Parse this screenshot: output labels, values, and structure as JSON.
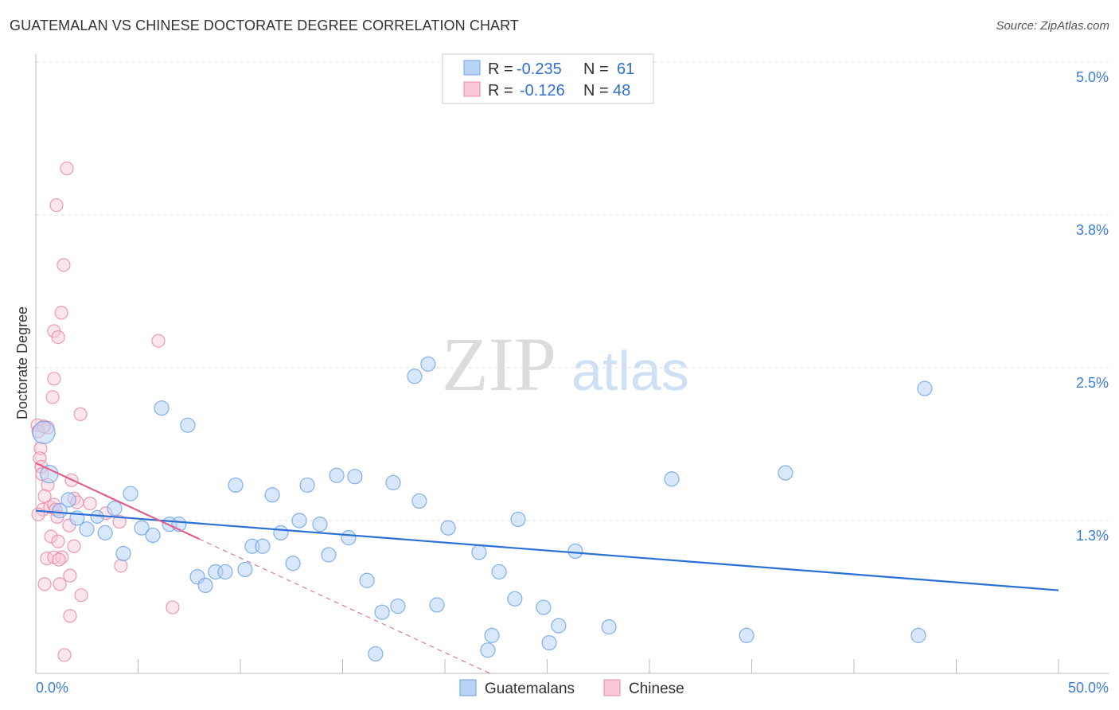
{
  "title": "GUATEMALAN VS CHINESE DOCTORATE DEGREE CORRELATION CHART",
  "source": "Source: ZipAtlas.com",
  "watermark": "ZIPatlas",
  "chart_data": {
    "type": "scatter",
    "title": "GUATEMALAN VS CHINESE DOCTORATE DEGREE CORRELATION CHART",
    "xlabel": "",
    "ylabel": "Doctorate Degree",
    "xlim": [
      0,
      50
    ],
    "ylim": [
      0,
      5.0
    ],
    "x_tick_labels": [
      "0.0%",
      "50.0%"
    ],
    "y_ticks": [
      1.25,
      2.5,
      3.75,
      5.0
    ],
    "y_tick_labels": [
      "1.3%",
      "2.5%",
      "3.8%",
      "5.0%"
    ],
    "grid": true,
    "legend_placement": "top-center",
    "legend": [
      {
        "name": "Guatemalans",
        "r_label": "R =",
        "r": "-0.235",
        "n_label": "N =",
        "n": "61",
        "color": "#6fa3e8",
        "fill": "#b9d3f5"
      },
      {
        "name": "Chinese",
        "r_label": "R =",
        "r": "-0.126",
        "n_label": "N =",
        "n": "48",
        "color": "#e889a6",
        "fill": "#f8c8d6"
      }
    ],
    "series": [
      {
        "name": "Guatemalans",
        "color": "#6fa3e8",
        "trend": {
          "x": [
            0,
            50
          ],
          "y": [
            1.33,
            0.68
          ],
          "color": "#2a6fd6"
        },
        "points": [
          [
            0.39,
            1.97,
            14
          ],
          [
            0.66,
            1.63,
            11
          ],
          [
            1.6,
            1.42,
            9
          ],
          [
            1.17,
            1.33,
            9
          ],
          [
            2.02,
            1.27,
            9
          ],
          [
            2.49,
            1.18,
            9
          ],
          [
            3.0,
            1.28,
            8
          ],
          [
            3.39,
            1.15,
            9
          ],
          [
            3.85,
            1.35,
            9
          ],
          [
            4.28,
            0.98,
            9
          ],
          [
            4.63,
            1.47,
            9
          ],
          [
            5.18,
            1.19,
            9
          ],
          [
            5.72,
            1.13,
            9
          ],
          [
            6.15,
            2.17,
            9
          ],
          [
            6.54,
            1.22,
            9
          ],
          [
            7.0,
            1.22,
            9
          ],
          [
            7.43,
            2.03,
            9
          ],
          [
            7.9,
            0.79,
            9
          ],
          [
            8.29,
            0.72,
            9
          ],
          [
            8.79,
            0.83,
            9
          ],
          [
            9.26,
            0.83,
            9
          ],
          [
            9.77,
            1.54,
            9
          ],
          [
            10.23,
            0.85,
            9
          ],
          [
            10.58,
            1.04,
            9
          ],
          [
            11.09,
            1.04,
            9
          ],
          [
            11.56,
            1.46,
            9
          ],
          [
            11.98,
            1.15,
            9
          ],
          [
            12.57,
            0.9,
            9
          ],
          [
            12.88,
            1.25,
            9
          ],
          [
            13.27,
            1.54,
            9
          ],
          [
            13.89,
            1.22,
            9
          ],
          [
            14.32,
            0.97,
            9
          ],
          [
            14.71,
            1.62,
            9
          ],
          [
            15.29,
            1.11,
            9
          ],
          [
            15.6,
            1.61,
            9
          ],
          [
            16.19,
            0.76,
            9
          ],
          [
            16.61,
            0.16,
            9
          ],
          [
            16.93,
            0.5,
            9
          ],
          [
            17.47,
            1.56,
            9
          ],
          [
            17.7,
            0.55,
            9
          ],
          [
            18.52,
            2.43,
            9
          ],
          [
            18.75,
            1.41,
            9
          ],
          [
            19.18,
            2.53,
            9
          ],
          [
            19.61,
            0.56,
            9
          ],
          [
            20.16,
            1.19,
            9
          ],
          [
            21.67,
            0.99,
            9
          ],
          [
            22.1,
            0.19,
            9
          ],
          [
            22.3,
            0.31,
            9
          ],
          [
            22.65,
            0.83,
            9
          ],
          [
            23.42,
            0.61,
            9
          ],
          [
            23.58,
            1.26,
            9
          ],
          [
            24.82,
            0.54,
            9
          ],
          [
            25.1,
            0.25,
            9
          ],
          [
            25.56,
            0.39,
            9
          ],
          [
            26.38,
            1.0,
            9
          ],
          [
            28.02,
            0.38,
            9
          ],
          [
            31.09,
            1.59,
            9
          ],
          [
            34.75,
            0.31,
            9
          ],
          [
            36.65,
            1.64,
            9
          ],
          [
            43.15,
            0.31,
            9
          ],
          [
            43.46,
            2.33,
            9
          ]
        ]
      },
      {
        "name": "Chinese",
        "color": "#e889a6",
        "trend": {
          "x": [
            0,
            7.98
          ],
          "y": [
            1.72,
            1.1
          ],
          "dashed_to": [
            22.2,
            0.0
          ],
          "color": "#e0608a"
        },
        "points": [
          [
            1.52,
            4.13,
            8
          ],
          [
            1.01,
            3.83,
            8
          ],
          [
            1.36,
            3.34,
            8
          ],
          [
            1.25,
            2.95,
            8
          ],
          [
            0.89,
            2.8,
            8
          ],
          [
            1.09,
            2.75,
            8
          ],
          [
            0.89,
            2.41,
            8
          ],
          [
            0.82,
            2.26,
            8
          ],
          [
            2.18,
            2.12,
            8
          ],
          [
            5.99,
            2.72,
            8
          ],
          [
            0.08,
            2.03,
            8
          ],
          [
            0.58,
            2.01,
            8
          ],
          [
            0.12,
            1.98,
            8
          ],
          [
            0.23,
            1.84,
            8
          ],
          [
            0.19,
            1.76,
            8
          ],
          [
            0.27,
            1.69,
            8
          ],
          [
            0.31,
            1.63,
            8
          ],
          [
            1.75,
            1.58,
            8
          ],
          [
            0.58,
            1.54,
            8
          ],
          [
            0.43,
            1.45,
            8
          ],
          [
            1.87,
            1.43,
            8
          ],
          [
            2.02,
            1.4,
            8
          ],
          [
            2.65,
            1.39,
            8
          ],
          [
            0.35,
            1.34,
            8
          ],
          [
            0.7,
            1.36,
            8
          ],
          [
            0.89,
            1.38,
            8
          ],
          [
            0.12,
            1.3,
            8
          ],
          [
            0.97,
            1.34,
            8
          ],
          [
            3.42,
            1.31,
            8
          ],
          [
            4.09,
            1.24,
            8
          ],
          [
            1.63,
            1.21,
            8
          ],
          [
            1.05,
            1.28,
            8
          ],
          [
            0.74,
            1.12,
            8
          ],
          [
            1.09,
            1.08,
            8
          ],
          [
            1.87,
            1.04,
            8
          ],
          [
            0.54,
            0.94,
            8
          ],
          [
            0.89,
            0.95,
            8
          ],
          [
            1.28,
            0.95,
            8
          ],
          [
            1.13,
            0.93,
            8
          ],
          [
            1.67,
            0.8,
            8
          ],
          [
            4.16,
            0.88,
            8
          ],
          [
            0.43,
            0.73,
            8
          ],
          [
            1.17,
            0.73,
            8
          ],
          [
            2.22,
            0.64,
            8
          ],
          [
            6.69,
            0.54,
            8
          ],
          [
            1.67,
            0.47,
            8
          ],
          [
            1.4,
            0.15,
            8
          ],
          [
            0.39,
            2.02,
            8
          ]
        ]
      }
    ]
  }
}
